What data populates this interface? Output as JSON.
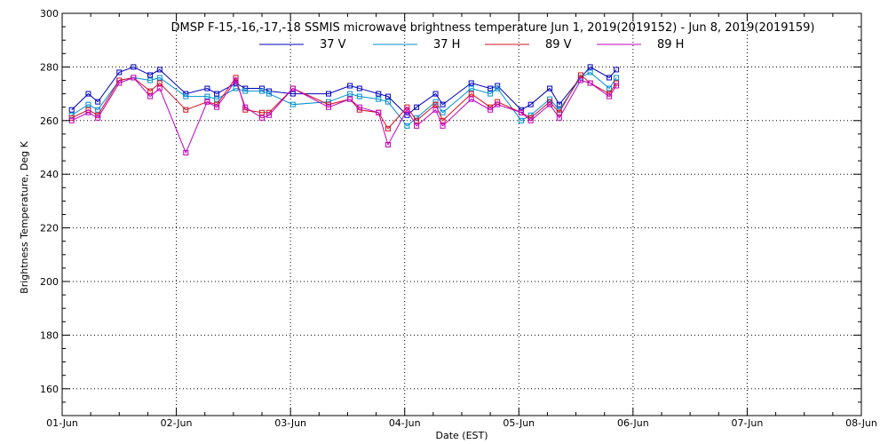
{
  "chart_data": {
    "type": "line",
    "title": "DMSP F-15,-16,-17,-18 SSMIS microwave brightness temperature Jun  1, 2019(2019152) - Jun  8, 2019(2019159)",
    "xlabel": "Date (EST)",
    "ylabel": "Brightness Temperature, Deg K",
    "xlim": [
      "2019-06-01T00:00",
      "2019-06-08T00:00"
    ],
    "ylim": [
      150,
      300
    ],
    "yticks": [
      160,
      180,
      200,
      220,
      240,
      260,
      280,
      300
    ],
    "xtick_labels": [
      "01-Jun",
      "02-Jun",
      "03-Jun",
      "04-Jun",
      "05-Jun",
      "06-Jun",
      "07-Jun",
      "08-Jun"
    ],
    "grid": true,
    "legend_position": "top",
    "x": [
      "2019-06-01T02:00",
      "2019-06-01T05:30",
      "2019-06-01T07:30",
      "2019-06-01T12:00",
      "2019-06-01T15:00",
      "2019-06-01T18:30",
      "2019-06-01T20:30",
      "2019-06-02T02:00",
      "2019-06-02T06:30",
      "2019-06-02T08:30",
      "2019-06-02T12:30",
      "2019-06-02T14:30",
      "2019-06-02T18:00",
      "2019-06-02T19:30",
      "2019-06-03T00:30",
      "2019-06-03T08:00",
      "2019-06-03T12:30",
      "2019-06-03T14:30",
      "2019-06-03T18:30",
      "2019-06-03T20:30",
      "2019-06-04T00:30",
      "2019-06-04T02:30",
      "2019-06-04T06:30",
      "2019-06-04T08:00",
      "2019-06-04T14:00",
      "2019-06-04T18:00",
      "2019-06-04T19:30",
      "2019-06-05T00:30",
      "2019-06-05T02:30",
      "2019-06-05T06:30",
      "2019-06-05T08:30",
      "2019-06-05T13:00",
      "2019-06-05T15:00",
      "2019-06-05T19:00",
      "2019-06-05T20:30"
    ],
    "series": [
      {
        "name": "37 V",
        "color": "#0000c0",
        "values": [
          264,
          270,
          267,
          278,
          280,
          277,
          279,
          270,
          272,
          270,
          274,
          272,
          272,
          271,
          270,
          270,
          273,
          272,
          270,
          269,
          262,
          265,
          270,
          266,
          274,
          272,
          273,
          264,
          266,
          272,
          266,
          276,
          280,
          276,
          279
        ]
      },
      {
        "name": "37 H",
        "color": "#0090d0",
        "values": [
          262,
          266,
          264,
          275,
          276,
          275,
          276,
          269,
          269,
          268,
          272,
          271,
          271,
          270,
          266,
          267,
          270,
          269,
          268,
          267,
          258,
          261,
          267,
          263,
          272,
          270,
          272,
          260,
          262,
          268,
          264,
          276,
          278,
          272,
          276
        ]
      },
      {
        "name": "89 V",
        "color": "#d01020",
        "values": [
          261,
          264,
          262,
          275,
          276,
          271,
          274,
          264,
          267,
          266,
          276,
          264,
          263,
          263,
          272,
          266,
          268,
          264,
          263,
          257,
          265,
          260,
          266,
          260,
          270,
          265,
          267,
          263,
          261,
          267,
          263,
          277,
          274,
          270,
          274
        ]
      },
      {
        "name": "89 H",
        "color": "#c000c0",
        "values": [
          260,
          263,
          261,
          274,
          276,
          269,
          272,
          248,
          267,
          265,
          275,
          265,
          261,
          262,
          272,
          265,
          268,
          265,
          263,
          251,
          264,
          258,
          264,
          258,
          268,
          264,
          266,
          263,
          260,
          266,
          261,
          275,
          274,
          269,
          273
        ]
      }
    ]
  }
}
